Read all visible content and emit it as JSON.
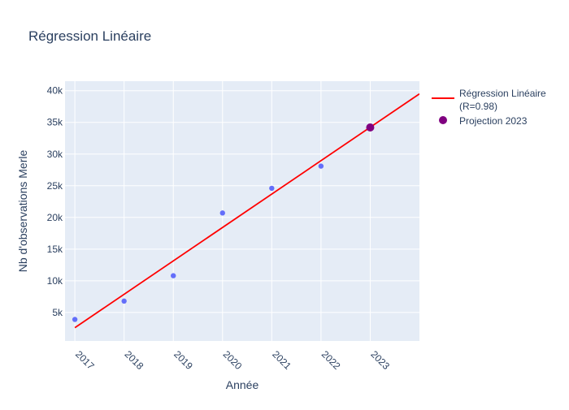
{
  "chart_data": {
    "type": "scatter",
    "title": "Régression Linéaire",
    "xlabel": "Année",
    "ylabel": "Nb d'observations Merle",
    "xlim": [
      2016.8,
      2024.0
    ],
    "ylim": [
      500,
      41500
    ],
    "x_ticks": [
      "2017",
      "2018",
      "2019",
      "2020",
      "2021",
      "2022",
      "2023"
    ],
    "y_ticks": [
      "5k",
      "10k",
      "15k",
      "20k",
      "25k",
      "30k",
      "35k",
      "40k"
    ],
    "y_tick_values": [
      5000,
      10000,
      15000,
      20000,
      25000,
      30000,
      35000,
      40000
    ],
    "grid": true,
    "legend_position": "right",
    "series": [
      {
        "type": "scatter",
        "color": "#636efa",
        "x": [
          2017,
          2018,
          2019,
          2020,
          2021,
          2022
        ],
        "y": [
          3900,
          6800,
          10800,
          20700,
          24600,
          28100
        ]
      },
      {
        "name": "Régression Linéaire (R=0.98)",
        "legend_lines": [
          "Régression Linéaire",
          "(R=0.98)"
        ],
        "type": "line",
        "color": "#ff0000",
        "x": [
          2017,
          2024
        ],
        "y": [
          2600,
          39500
        ]
      },
      {
        "name": "Projection 2023",
        "type": "scatter",
        "color": "#800080",
        "x": [
          2023
        ],
        "y": [
          34200
        ]
      }
    ]
  }
}
